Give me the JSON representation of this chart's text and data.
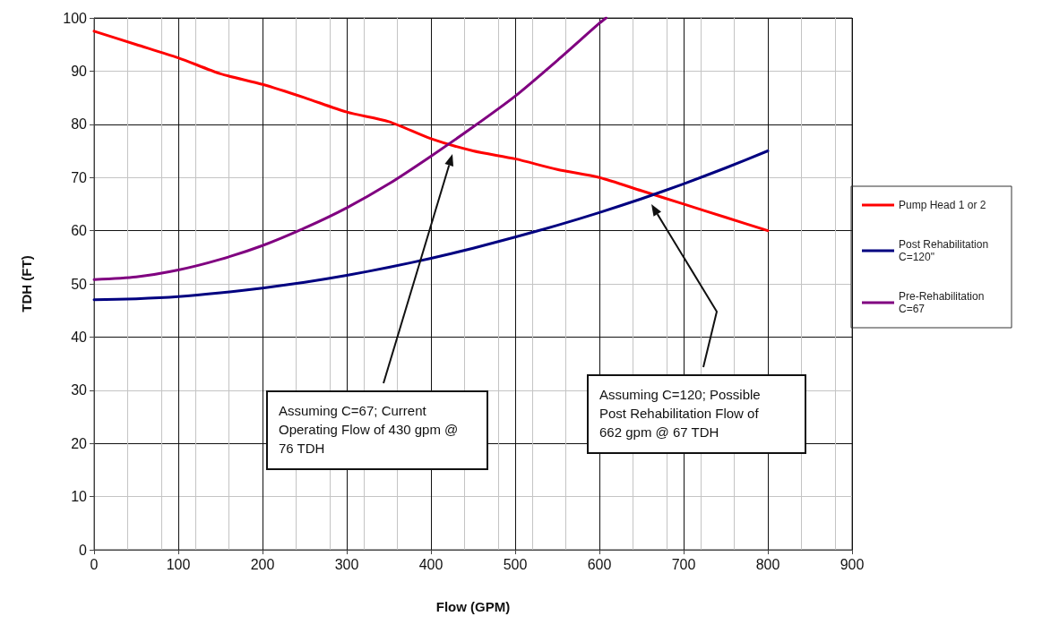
{
  "chart_data": {
    "type": "line",
    "xlabel": "Flow (GPM)",
    "ylabel": "TDH (FT)",
    "xlim": [
      0,
      900
    ],
    "xticks": [
      0,
      100,
      200,
      300,
      400,
      500,
      600,
      700,
      800,
      900
    ],
    "ylim": [
      0,
      100
    ],
    "yticks": [
      0,
      10,
      20,
      30,
      40,
      50,
      60,
      70,
      80,
      90,
      100
    ],
    "grid": true,
    "legend": "right",
    "marker": "none",
    "line_style": "solid",
    "series": [
      {
        "name": "Pump Head 1 or 2",
        "color": "#ff0000",
        "x": [
          0,
          50,
          100,
          150,
          200,
          250,
          300,
          350,
          400,
          450,
          500,
          550,
          600,
          650,
          700,
          750,
          800
        ],
        "values": [
          97.5,
          95,
          92.5,
          89.5,
          87.5,
          85,
          82.3,
          80.5,
          77.3,
          75,
          73.5,
          71.5,
          70,
          67.5,
          65,
          62.5,
          60
        ]
      },
      {
        "name": "Post Rehabilitation C=120\"",
        "color": "#000080",
        "x": [
          0,
          50,
          100,
          150,
          200,
          250,
          300,
          350,
          400,
          450,
          500,
          550,
          600,
          650,
          700,
          750,
          800
        ],
        "values": [
          47,
          47.2,
          47.6,
          48.3,
          49.2,
          50.3,
          51.6,
          53.1,
          54.8,
          56.7,
          58.8,
          61,
          63.4,
          66,
          68.8,
          71.8,
          75
        ]
      },
      {
        "name": "Pre-Rehabilitation C=67",
        "color": "#800080",
        "x": [
          0,
          50,
          100,
          150,
          200,
          250,
          300,
          350,
          400,
          450,
          500,
          550,
          600,
          608
        ],
        "values": [
          50.8,
          51.3,
          52.6,
          54.6,
          57.2,
          60.5,
          64.3,
          68.8,
          74,
          79.5,
          85.3,
          92,
          99,
          100
        ]
      }
    ],
    "annotations": [
      "Assuming C=67; Current Operating Flow of 430 gpm @ 76 TDH",
      "Assuming C=120; Possible Post Rehabilitation Flow of 662 gpm @ 67 TDH"
    ]
  }
}
